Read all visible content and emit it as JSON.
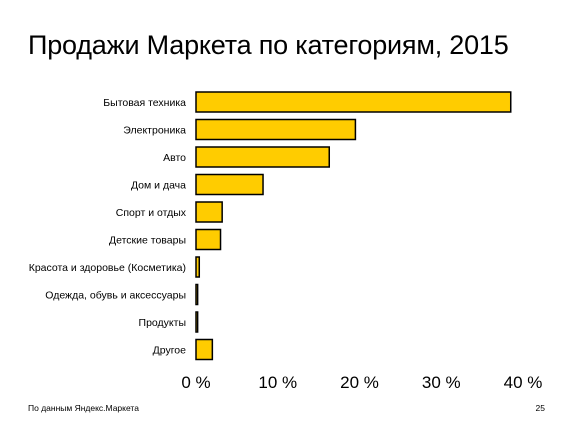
{
  "slide": {
    "title": "Продажи Маркета по категориям, 2015",
    "source": "По данным Яндекс.Маркета",
    "page_number": "25"
  },
  "colors": {
    "bar_fill": "#ffcc00",
    "bar_stroke": "#000000",
    "text": "#000000"
  },
  "chart_data": {
    "type": "bar",
    "orientation": "horizontal",
    "title": "Продажи Маркета по категориям, 2015",
    "categories": [
      "Бытовая техника",
      "Электроника",
      "Авто",
      "Дом и дача",
      "Спорт и отдых",
      "Детские товары",
      "Красота и здоровье (Косметика)",
      "Одежда, обувь и аксессуары",
      "Продукты",
      "Другое"
    ],
    "values": [
      38.5,
      19.5,
      16.3,
      8.2,
      3.2,
      3.0,
      0.4,
      0.2,
      0.2,
      2.0
    ],
    "value_unit": "%",
    "xlim": [
      0,
      40
    ],
    "xticks": [
      "0 %",
      "10 %",
      "20 %",
      "30 %",
      "40 %"
    ],
    "grid": false,
    "legend": "none"
  }
}
